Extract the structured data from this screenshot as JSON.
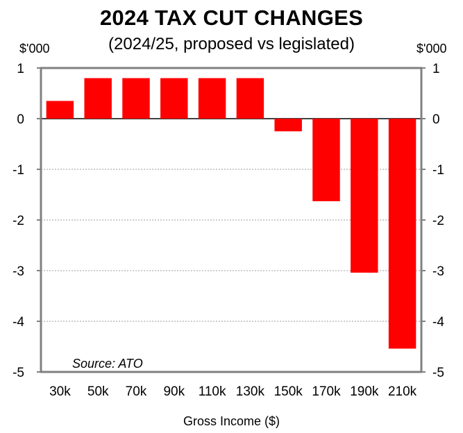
{
  "chart_data": {
    "type": "bar",
    "title": "2024 TAX CUT CHANGES",
    "subtitle": "(2024/25, proposed vs legislated)",
    "unit_left": "$'000",
    "unit_right": "$'000",
    "xlabel": "Gross Income ($)",
    "ylabel": "$'000",
    "categories": [
      "30k",
      "50k",
      "70k",
      "90k",
      "110k",
      "130k",
      "150k",
      "170k",
      "190k",
      "210k"
    ],
    "values": [
      0.35,
      0.8,
      0.8,
      0.8,
      0.8,
      0.8,
      -0.25,
      -1.63,
      -3.04,
      -4.54
    ],
    "ylim": [
      -5,
      1
    ],
    "yticks": [
      1,
      0,
      -1,
      -2,
      -3,
      -4,
      -5
    ],
    "grid": true,
    "bar_color": "#ff0000",
    "axis_color": "#808080",
    "source": "Source: ATO"
  }
}
